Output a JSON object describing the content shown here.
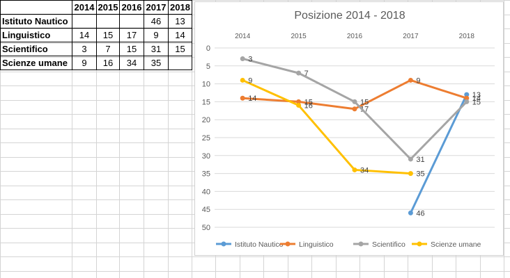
{
  "table": {
    "headers": [
      "",
      "2014",
      "2015",
      "2016",
      "2017",
      "2018"
    ],
    "rows": [
      {
        "label": "Istituto Nautico",
        "values": [
          "",
          "",
          "",
          "46",
          "13"
        ]
      },
      {
        "label": "Linguistico",
        "values": [
          "14",
          "15",
          "17",
          "9",
          "14"
        ]
      },
      {
        "label": "Scientifico",
        "values": [
          "3",
          "7",
          "15",
          "31",
          "15"
        ]
      },
      {
        "label": "Scienze umane",
        "values": [
          "9",
          "16",
          "34",
          "35",
          ""
        ]
      }
    ]
  },
  "chart_data": {
    "type": "line",
    "title": "Posizione 2014 - 2018",
    "categories": [
      "2014",
      "2015",
      "2016",
      "2017",
      "2018"
    ],
    "y_reversed": true,
    "ylim": [
      0,
      50
    ],
    "yticks": [
      "0",
      "5",
      "10",
      "15",
      "20",
      "25",
      "30",
      "35",
      "40",
      "45",
      "50"
    ],
    "grid": true,
    "legend_position": "bottom",
    "data_labels": true,
    "series": [
      {
        "name": "Istituto Nautico",
        "color": "#5b9bd5",
        "values": [
          null,
          null,
          null,
          46,
          13
        ]
      },
      {
        "name": "Linguistico",
        "color": "#ed7d31",
        "values": [
          14,
          15,
          17,
          9,
          14
        ]
      },
      {
        "name": "Scientifico",
        "color": "#a5a5a5",
        "values": [
          3,
          7,
          15,
          31,
          15
        ]
      },
      {
        "name": "Scienze umane",
        "color": "#ffc000",
        "values": [
          9,
          16,
          34,
          35,
          null
        ]
      }
    ]
  }
}
